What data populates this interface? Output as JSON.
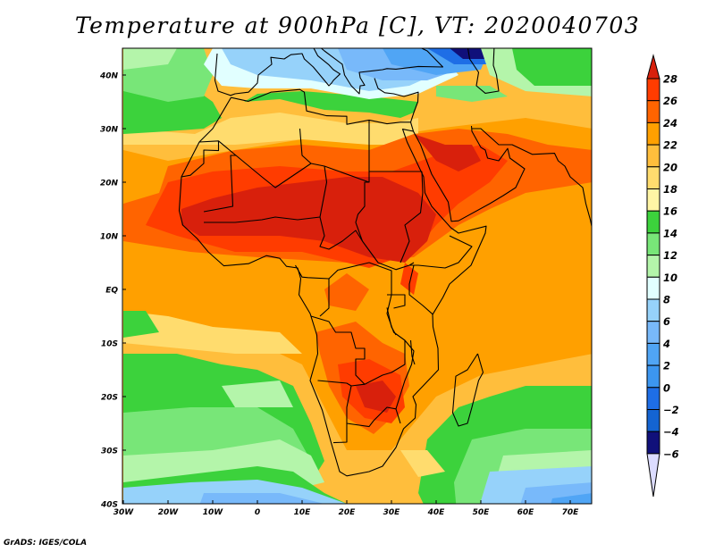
{
  "title": "Temperature at 900hPa [C], VT: 2020040703",
  "footer": "GrADS: IGES/COLA",
  "map": {
    "lat_labels": [
      "40N",
      "30N",
      "20N",
      "10N",
      "EQ",
      "10S",
      "20S",
      "30S",
      "40S"
    ],
    "lat_values": [
      40,
      30,
      20,
      10,
      0,
      -10,
      -20,
      -30,
      -40
    ],
    "lon_labels": [
      "30W",
      "20W",
      "10W",
      "0",
      "10E",
      "20E",
      "30E",
      "40E",
      "50E",
      "60E",
      "70E"
    ],
    "lon_values": [
      -30,
      -20,
      -10,
      0,
      10,
      20,
      30,
      40,
      50,
      60,
      70
    ],
    "lat_range": [
      -40,
      45
    ],
    "lon_range": [
      -30,
      75
    ]
  },
  "colorbar": {
    "labels": [
      "28",
      "26",
      "24",
      "22",
      "20",
      "18",
      "16",
      "14",
      "12",
      "10",
      "8",
      "6",
      "4",
      "2",
      "0",
      "-2",
      "-4",
      "-6"
    ],
    "colors_top_to_bottom": [
      "#d8200c",
      "#ff3c00",
      "#ff6400",
      "#ffa000",
      "#ffbe3c",
      "#ffdc6e",
      "#fff5a5",
      "#3cd23c",
      "#78e678",
      "#b4f5aa",
      "#e1ffff",
      "#96d2fa",
      "#78b9fa",
      "#50a5f5",
      "#3c96f0",
      "#1e6ee6",
      "#1464d2",
      "#10107a",
      "#dcdcff"
    ]
  }
}
